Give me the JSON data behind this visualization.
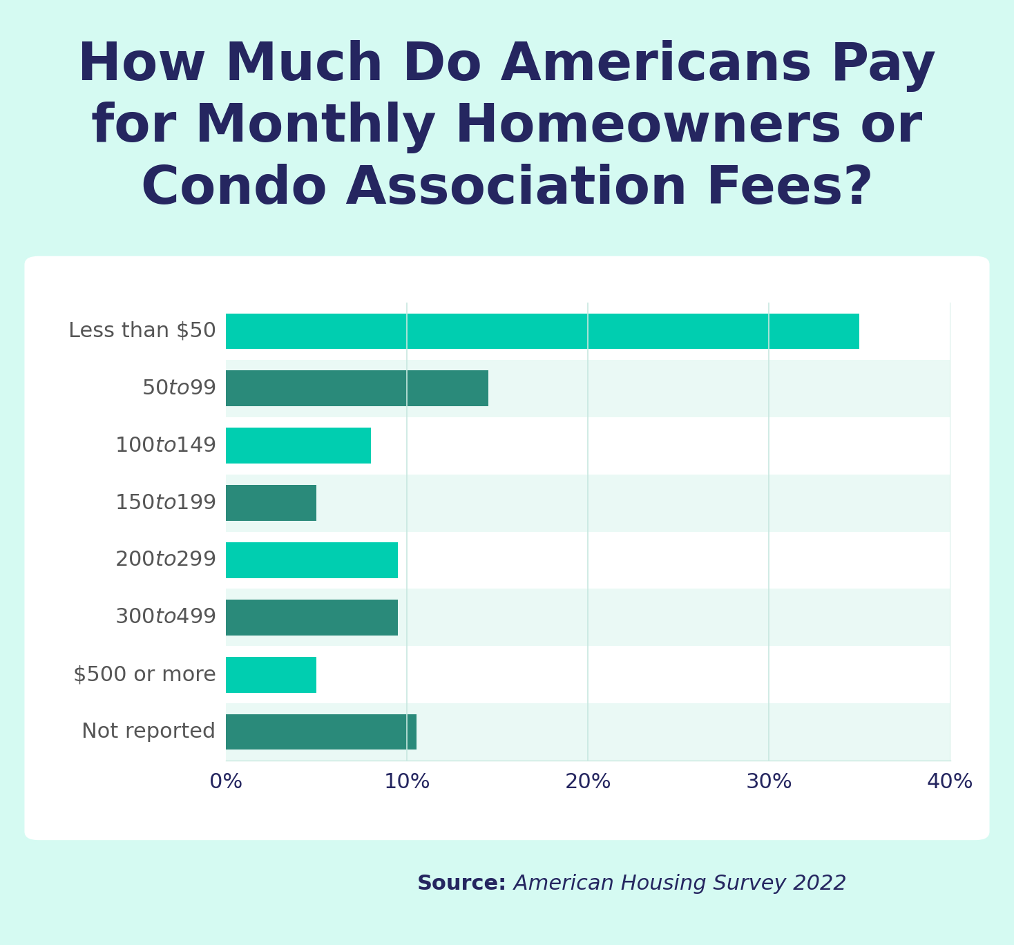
{
  "title": "How Much Do Americans Pay\nfor Monthly Homeowners or\nCondo Association Fees?",
  "categories": [
    "Less than $50",
    "$50 to $99",
    "$100 to $149",
    "$150 to $199",
    "$200 to $299",
    "$300 to $499",
    "$500 or more",
    "Not reported"
  ],
  "values": [
    35.0,
    14.5,
    8.0,
    5.0,
    9.5,
    9.5,
    5.0,
    10.5
  ],
  "bar_colors": [
    "#00CEB0",
    "#2A8A7A",
    "#00CEB0",
    "#2A8A7A",
    "#00CEB0",
    "#2A8A7A",
    "#00CEB0",
    "#2A8A7A"
  ],
  "row_bg_colors": [
    "#FFFFFF",
    "#EAF9F5",
    "#FFFFFF",
    "#EAF9F5",
    "#FFFFFF",
    "#EAF9F5",
    "#FFFFFF",
    "#EAF9F5"
  ],
  "bg_color": "#D5FAF2",
  "chart_bg": "#FFFFFF",
  "title_color": "#252660",
  "label_color": "#555555",
  "axis_color": "#252660",
  "grid_color": "#C8E8E0",
  "source_bold": "Source:",
  "source_italic": " American Housing Survey 2022",
  "xlim": [
    0,
    40
  ],
  "xticks": [
    0,
    10,
    20,
    30,
    40
  ],
  "xtick_labels": [
    "0%",
    "10%",
    "20%",
    "30%",
    "40%"
  ]
}
